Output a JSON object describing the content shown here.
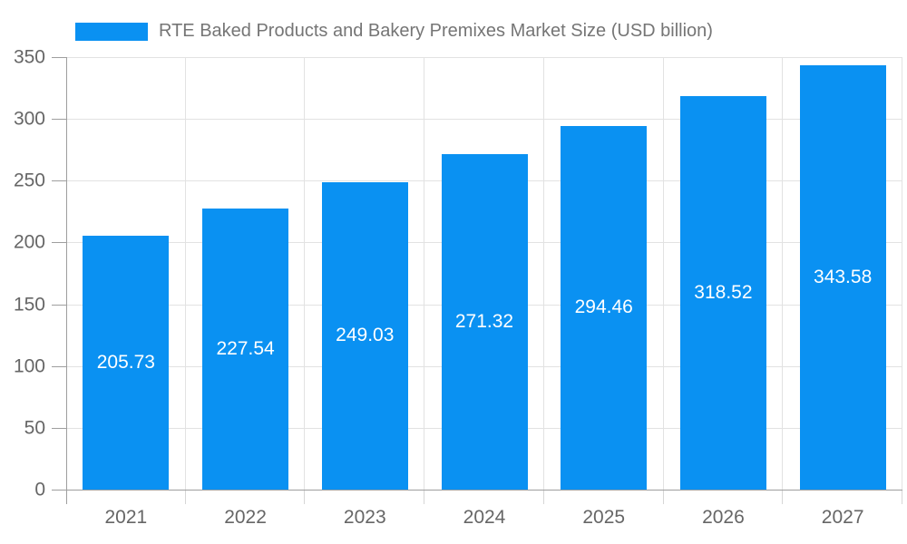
{
  "chart_data": {
    "type": "bar",
    "title": "RTE Baked Products and Bakery Premixes Market Size (USD billion)",
    "categories": [
      "2021",
      "2022",
      "2023",
      "2024",
      "2025",
      "2026",
      "2027"
    ],
    "values": [
      205.73,
      227.54,
      249.03,
      271.32,
      294.46,
      318.52,
      343.58
    ],
    "value_labels": [
      "205.73",
      "227.54",
      "249.03",
      "271.32",
      "294.46",
      "318.52",
      "343.58"
    ],
    "xlabel": "",
    "ylabel": "",
    "ylim": [
      0,
      350
    ],
    "yticks": [
      0,
      50,
      100,
      150,
      200,
      250,
      300,
      350
    ],
    "grid": true,
    "legend_position": "top",
    "value_label_position": "center-of-bar",
    "colors": {
      "bar": "#0a91f2",
      "grid": "#e2e2e2",
      "axis": "#9e9e9e",
      "x_tick": "#d6d6d6",
      "tick_label": "#666666",
      "legend_text": "#757575",
      "value_label": "#ffffff",
      "background": "#ffffff"
    }
  }
}
